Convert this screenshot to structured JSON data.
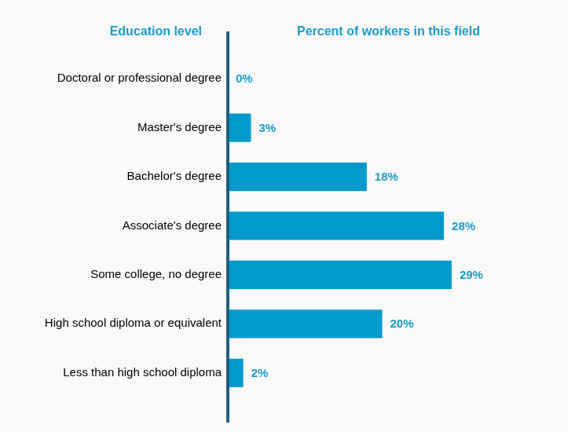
{
  "chart_data": {
    "type": "bar",
    "orientation": "horizontal",
    "ylabel": "Education level",
    "xlabel": "Percent of workers in this field",
    "categories": [
      "Doctoral or professional degree",
      "Master's degree",
      "Bachelor's degree",
      "Associate's degree",
      "Some college, no degree",
      "High school diploma or equivalent",
      "Less than high school diploma"
    ],
    "values": [
      0,
      3,
      18,
      28,
      29,
      20,
      2
    ],
    "value_labels": [
      "0%",
      "3%",
      "18%",
      "28%",
      "29%",
      "20%",
      "2%"
    ],
    "color": "#0099cc",
    "xlim": [
      0,
      40
    ],
    "grid": false,
    "data_labels": true,
    "tick_labels": "y"
  }
}
